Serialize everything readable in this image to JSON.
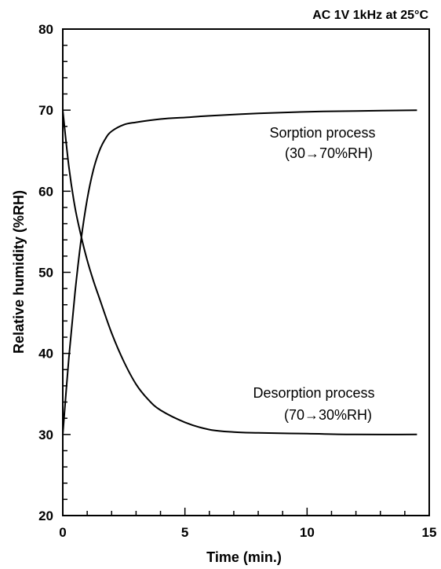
{
  "chart_data": {
    "type": "line",
    "condition_label": "AC 1V  1kHz  at 25°C",
    "xlabel": "Time (min.)",
    "ylabel": "Relative humidity (%RH)",
    "xlim": [
      0,
      15
    ],
    "ylim": [
      20,
      80
    ],
    "xticks": [
      0,
      5,
      10,
      15
    ],
    "yticks": [
      20,
      30,
      40,
      50,
      60,
      70,
      80
    ],
    "x_minor_step": 1,
    "y_minor_step": 2,
    "grid": false,
    "series": [
      {
        "x": [
          0,
          0.25,
          0.5,
          0.75,
          1,
          1.25,
          1.5,
          1.75,
          2,
          2.5,
          3,
          4,
          5,
          6,
          8,
          10,
          12,
          14.5
        ],
        "y": [
          30,
          39.5,
          47.5,
          54,
          59,
          62.6,
          65,
          66.5,
          67.4,
          68.2,
          68.5,
          68.9,
          69.1,
          69.3,
          69.6,
          69.8,
          69.9,
          70
        ],
        "annotation": [
          "Sorption process",
          "(30→70%RH)"
        ]
      },
      {
        "x": [
          0,
          0.25,
          0.5,
          0.75,
          1,
          1.25,
          1.5,
          2,
          2.5,
          3,
          3.5,
          4,
          5,
          6,
          7,
          8,
          10,
          12,
          14.5
        ],
        "y": [
          70,
          63,
          58,
          54.5,
          51.5,
          49,
          46.8,
          42.5,
          39,
          36.2,
          34.3,
          33,
          31.5,
          30.6,
          30.3,
          30.2,
          30.1,
          30,
          30
        ],
        "annotation": [
          "Desorption process",
          "(70→30%RH)"
        ]
      }
    ]
  }
}
